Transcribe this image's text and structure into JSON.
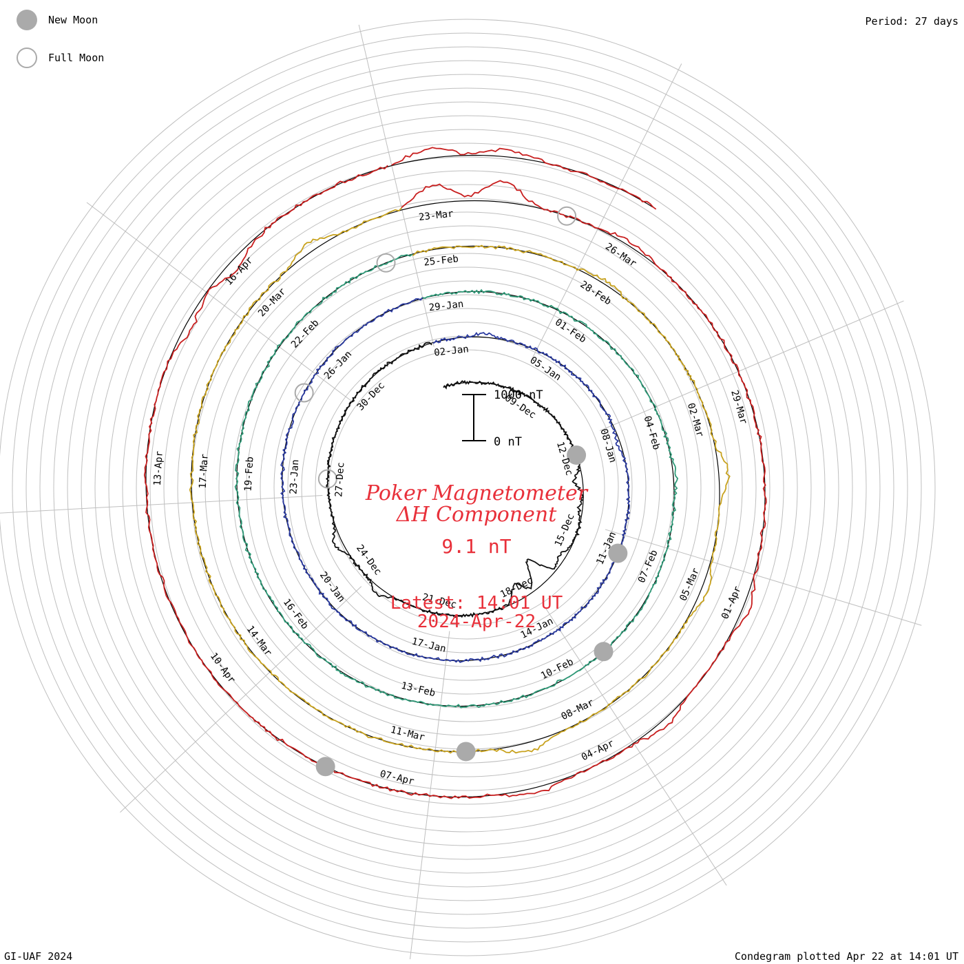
{
  "header": {
    "period": "Period: 27 days"
  },
  "legend": {
    "new_moon": "New Moon",
    "full_moon": "Full Moon"
  },
  "footer": {
    "left": "GI-UAF 2024",
    "right": "Condegram plotted Apr 22 at 14:01 UT"
  },
  "colors": {
    "grid": "#bfbfbf",
    "moon": "#aaaaaa",
    "title": "#e8303a",
    "rings": [
      "#111111",
      "#2a1e7a",
      "#2a3aa0",
      "#2a9ab8",
      "#2f9a78",
      "#7ab82a",
      "#c8a21e",
      "#c8781e",
      "#c81e1e"
    ]
  },
  "chart_data": {
    "type": "line",
    "subtype": "condegram-spiral",
    "title_line1": "Poker Magnetometer",
    "title_line2": "ΔH Component",
    "current_value": "9.1 nT",
    "latest_line1": "Latest: 14:01 UT",
    "latest_line2": "2024-Apr-22",
    "scale_top": "1000 nT",
    "scale_bottom": "0 nT",
    "period_days": 27,
    "start_date": "2023-12-06",
    "end_date": "2024-04-22",
    "date_labels": [
      "09-Dec",
      "12-Dec",
      "15-Dec",
      "18-Dec",
      "21-Dec",
      "24-Dec",
      "27-Dec",
      "30-Dec",
      "02-Jan",
      "05-Jan",
      "08-Jan",
      "11-Jan",
      "14-Jan",
      "17-Jan",
      "20-Jan",
      "23-Jan",
      "26-Jan",
      "29-Jan",
      "01-Feb",
      "04-Feb",
      "07-Feb",
      "10-Feb",
      "13-Feb",
      "16-Feb",
      "19-Feb",
      "22-Feb",
      "25-Feb",
      "28-Feb",
      "02-Mar",
      "05-Mar",
      "08-Mar",
      "11-Mar",
      "14-Mar",
      "17-Mar",
      "20-Mar",
      "23-Mar",
      "26-Mar",
      "29-Mar",
      "01-Apr",
      "04-Apr",
      "07-Apr",
      "10-Apr",
      "13-Apr",
      "16-Apr"
    ],
    "new_moons": [
      "2023-12-12",
      "2024-01-11",
      "2024-02-09",
      "2024-03-10",
      "2024-04-08"
    ],
    "full_moons": [
      "2023-12-27",
      "2024-01-25",
      "2024-02-24",
      "2024-03-25"
    ],
    "disturbances_nT": [
      {
        "date": "2023-12-13",
        "value": -180
      },
      {
        "date": "2023-12-14",
        "value": -80
      },
      {
        "date": "2023-12-16",
        "value": -150
      },
      {
        "date": "2023-12-17",
        "value": -600
      },
      {
        "date": "2023-12-18",
        "value": -350
      },
      {
        "date": "2023-12-23",
        "value": 150
      },
      {
        "date": "2023-12-25",
        "value": 180
      },
      {
        "date": "2024-01-03",
        "value": 80
      },
      {
        "date": "2024-01-08",
        "value": -60
      },
      {
        "date": "2024-02-05",
        "value": 60
      },
      {
        "date": "2024-02-28",
        "value": 80
      },
      {
        "date": "2024-03-03",
        "value": 200
      },
      {
        "date": "2024-03-05",
        "value": 150
      },
      {
        "date": "2024-03-09",
        "value": 200
      },
      {
        "date": "2024-03-21",
        "value": 180
      },
      {
        "date": "2024-03-23",
        "value": 400
      },
      {
        "date": "2024-03-24",
        "value": 450
      },
      {
        "date": "2024-03-26",
        "value": 100
      },
      {
        "date": "2024-04-01",
        "value": 150
      },
      {
        "date": "2024-04-03",
        "value": 150
      },
      {
        "date": "2024-04-05",
        "value": 120
      },
      {
        "date": "2024-04-15",
        "value": -150
      },
      {
        "date": "2024-04-16",
        "value": -200
      },
      {
        "date": "2024-04-19",
        "value": 200
      },
      {
        "date": "2024-04-20",
        "value": 150
      }
    ]
  }
}
